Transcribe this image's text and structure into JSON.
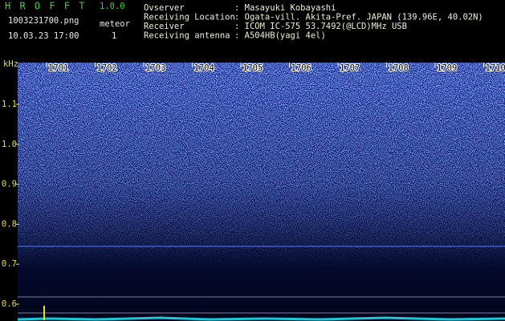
{
  "header": {
    "app_name": "H R O F F T",
    "version": "1.0.0",
    "file": "1003231700.png",
    "mode": "meteor",
    "datetime": "10.03.23 17:00",
    "count": "1",
    "info": [
      {
        "label": "Ovserver",
        "value": ": Masayuki Kobayashi"
      },
      {
        "label": "Receiving Location",
        "value": ": Ogata-vill. Akita-Pref. JAPAN (139.96E, 40.02N)"
      },
      {
        "label": "Receiver",
        "value": ": ICOM IC-575 53.7492(@LCD)MHz USB"
      },
      {
        "label": "Receiving antenna",
        "value": ": A504HB(yagi 4el)"
      }
    ]
  },
  "spectrogram": {
    "unit": "kHz",
    "time_labels": [
      "1701",
      "1702",
      "1703",
      "1704",
      "1705",
      "1706",
      "1707",
      "1708",
      "1709",
      "1710"
    ],
    "freq_labels": [
      "1.1",
      "1.0",
      "0.9",
      "0.8",
      "0.7",
      "0.6"
    ]
  }
}
